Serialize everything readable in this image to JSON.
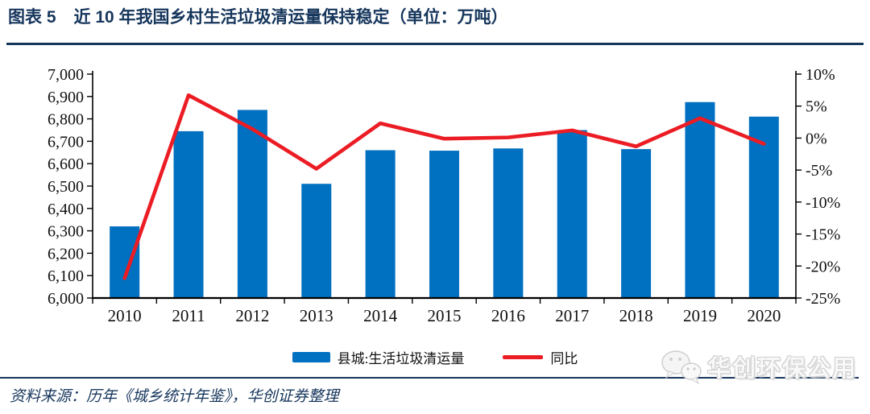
{
  "header": {
    "chart_label": "图表 5",
    "title": "近 10 年我国乡村生活垃圾清运量保持稳定（单位：万吨）"
  },
  "chart_data": {
    "type": "bar+line combo",
    "categories": [
      "2010",
      "2011",
      "2012",
      "2013",
      "2014",
      "2015",
      "2016",
      "2017",
      "2018",
      "2019",
      "2020"
    ],
    "series": [
      {
        "name": "县城:生活垃圾清运量",
        "type": "bar",
        "axis": "left",
        "color": "#0070C0",
        "values": [
          6320,
          6745,
          6840,
          6510,
          6660,
          6658,
          6668,
          6750,
          6665,
          6875,
          6810
        ]
      },
      {
        "name": "同比",
        "type": "line",
        "axis": "right",
        "color": "#EC1C24",
        "values": [
          -21.9,
          6.7,
          1.4,
          -4.8,
          2.3,
          -0.1,
          0.1,
          1.2,
          -1.3,
          3.1,
          -0.9
        ]
      }
    ],
    "left_axis": {
      "min": 6000,
      "max": 7000,
      "step": 100,
      "ticks": [
        {
          "v": 7000,
          "label": "7,000"
        },
        {
          "v": 6900,
          "label": "6,900"
        },
        {
          "v": 6800,
          "label": "6,800"
        },
        {
          "v": 6700,
          "label": "6,700"
        },
        {
          "v": 6600,
          "label": "6,600"
        },
        {
          "v": 6500,
          "label": "6,500"
        },
        {
          "v": 6400,
          "label": "6,400"
        },
        {
          "v": 6300,
          "label": "6,300"
        },
        {
          "v": 6200,
          "label": "6,200"
        },
        {
          "v": 6100,
          "label": "6,100"
        },
        {
          "v": 6000,
          "label": "6,000"
        }
      ]
    },
    "right_axis": {
      "min": -25,
      "max": 10,
      "step": 5,
      "ticks": [
        {
          "v": 10,
          "label": "10%"
        },
        {
          "v": 5,
          "label": "5%"
        },
        {
          "v": 0,
          "label": "0%"
        },
        {
          "v": -5,
          "label": "-5%"
        },
        {
          "v": -10,
          "label": "-10%"
        },
        {
          "v": -15,
          "label": "-15%"
        },
        {
          "v": -20,
          "label": "-20%"
        },
        {
          "v": -25,
          "label": "-25%"
        }
      ]
    },
    "legend_position": "bottom",
    "grid": false
  },
  "footer": {
    "source": "资料来源：历年《城乡统计年鉴》，华创证券整理"
  },
  "watermark": {
    "icon": "wechat-icon",
    "text": "华创环保公用"
  },
  "colors": {
    "navy": "#16365C",
    "bar_blue": "#0070C0",
    "line_red": "#EC1C24",
    "watermark_gray": "#CFCFCF"
  }
}
